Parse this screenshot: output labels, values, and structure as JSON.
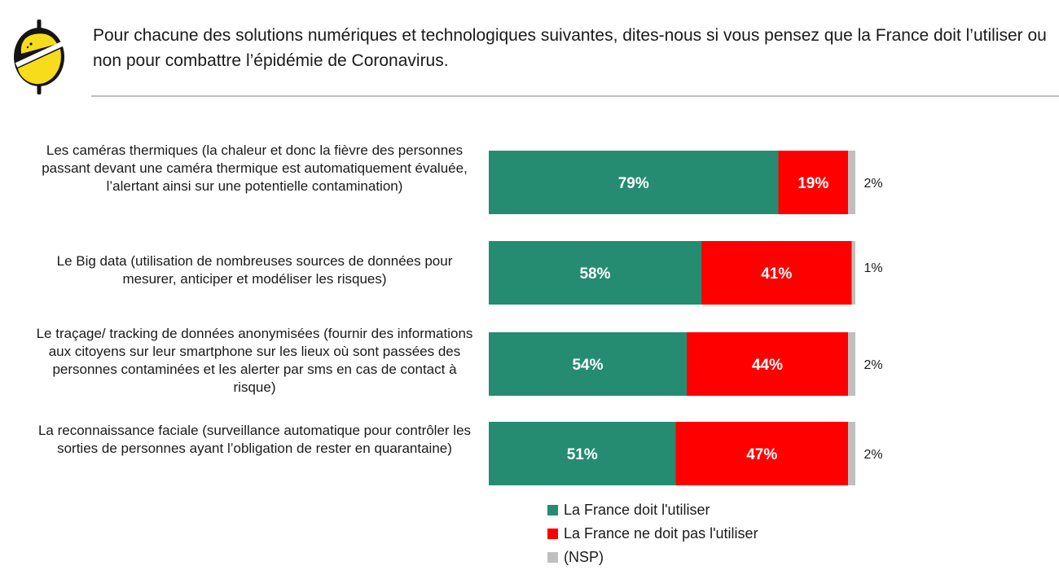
{
  "header": {
    "title": "Pour chacune des solutions numériques et technologiques suivantes, dites-nous si vous pensez que la France doit l’utiliser ou non pour combattre l’épidémie de Coronavirus."
  },
  "colors": {
    "oui": "#258c72",
    "non": "#ff0000",
    "nsp": "#bfbfbf",
    "logo_yellow": "#f7dc1b",
    "logo_dark": "#141414"
  },
  "chart_data": {
    "type": "bar",
    "orientation": "horizontal",
    "stacked": true,
    "percent_scale": [
      0,
      100
    ],
    "categories": [
      "Les caméras thermiques (la chaleur et donc la fièvre des personnes passant devant une caméra thermique est automatiquement évaluée, l’alertant ainsi sur une potentielle contamination)",
      "Le Big data (utilisation de nombreuses sources de données pour mesurer, anticiper et modéliser les risques)",
      "Le traçage/ tracking de données anonymisées (fournir des informations aux citoyens sur leur smartphone sur les lieux où sont passées des personnes contaminées et les alerter par sms en cas de contact à risque)",
      "La reconnaissance faciale (surveillance automatique pour contrôler les sorties de personnes ayant l’obligation de rester en quarantaine)"
    ],
    "series": [
      {
        "name": "La France doit l'utiliser",
        "values": [
          79,
          58,
          54,
          51
        ],
        "labels": [
          "79%",
          "58%",
          "54%",
          "51%"
        ],
        "color": "#258c72"
      },
      {
        "name": "La France ne doit pas l'utiliser",
        "values": [
          19,
          41,
          44,
          47
        ],
        "labels": [
          "19%",
          "41%",
          "44%",
          "47%"
        ],
        "color": "#ff0000"
      },
      {
        "name": "(NSP)",
        "values": [
          2,
          1,
          2,
          2
        ],
        "labels": [
          "2%",
          "1%",
          "2%",
          "2%"
        ],
        "color": "#bfbfbf"
      }
    ],
    "legend_position": "bottom",
    "grid": false
  }
}
